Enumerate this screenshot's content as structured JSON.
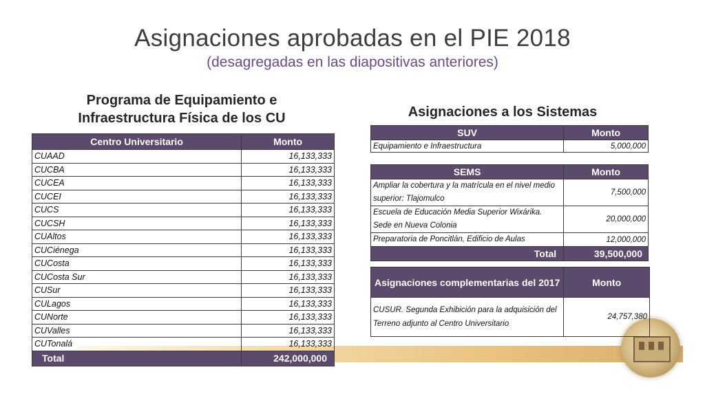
{
  "slide": {
    "title": "Asignaciones aprobadas en el PIE 2018",
    "subtitle": "(desagregadas en las diapositivas anteriores)"
  },
  "left": {
    "heading_line1": "Programa de Equipamiento e",
    "heading_line2": "Infraestructura Física de los CU",
    "col_center": "Centro Universitario",
    "col_amount": "Monto",
    "rows": [
      {
        "name": "CUAAD",
        "amount": "16,133,333"
      },
      {
        "name": "CUCBA",
        "amount": "16,133,333"
      },
      {
        "name": "CUCEA",
        "amount": "16,133,333"
      },
      {
        "name": "CUCEI",
        "amount": "16,133,333"
      },
      {
        "name": "CUCS",
        "amount": "16,133,333"
      },
      {
        "name": "CUCSH",
        "amount": "16,133,333"
      },
      {
        "name": "CUAltos",
        "amount": "16,133,333"
      },
      {
        "name": "CUCiénega",
        "amount": "16,133,333"
      },
      {
        "name": "CUCosta",
        "amount": "16,133,333"
      },
      {
        "name": "CUCosta Sur",
        "amount": "16,133,333"
      },
      {
        "name": "CUSur",
        "amount": "16,133,333"
      },
      {
        "name": "CULagos",
        "amount": "16,133,333"
      },
      {
        "name": "CUNorte",
        "amount": "16,133,333"
      },
      {
        "name": "CUValles",
        "amount": "16,133,333"
      },
      {
        "name": "CUTonalá",
        "amount": "16,133,333"
      }
    ],
    "total_label": "Total",
    "total_amount": "242,000,000"
  },
  "right": {
    "heading": "Asignaciones a los Sistemas",
    "suv_header": "SUV",
    "suv_amount_header": "Monto",
    "suv_rows": [
      {
        "name": "Equipamiento e Infraestructura",
        "amount": "5,000,000"
      }
    ],
    "sems_header": "SEMS",
    "sems_amount_header": "Monto",
    "sems_rows": [
      {
        "name": "Ampliar la cobertura y la matrícula en el nivel medio superior: Tlajomulco",
        "amount": "7,500,000"
      },
      {
        "name": "Escuela de Educación Media Superior Wixárika. Sede en Nueva Colonia",
        "amount": "20,000,000"
      },
      {
        "name": "Preparatoria de Poncitlán, Edificio de Aulas",
        "amount": "12,000,000"
      }
    ],
    "total_label": "Total",
    "total_amount": "39,500,000"
  },
  "complementary": {
    "header": "Asignaciones complementarias del 2017",
    "amount_header": "Monto",
    "rows": [
      {
        "name": "CUSUR. Segunda Exhibición para la adquisición del Terreno adjunto al Centro Universitario",
        "amount": "24,757,380"
      }
    ]
  }
}
